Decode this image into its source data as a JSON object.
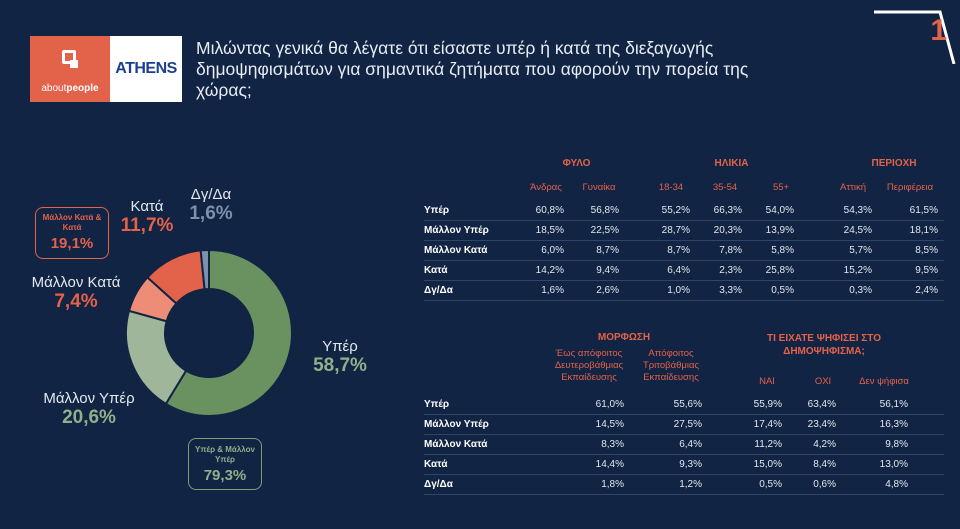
{
  "brand": {
    "about": "about",
    "people": "people",
    "athens": "ATHENS"
  },
  "title": "Μιλώντας γενικά θα λέγατε ότι είσαστε υπέρ ή κατά της διεξαγωγής δημοψηφισμάτων για σημαντικά ζητήματα που αφορούν την πορεία της χώρας;",
  "slide_number": "1",
  "colors": {
    "bg": "#112443",
    "accent": "#e3624a",
    "green_dark": "#6a9160",
    "green_light": "#9fb69b",
    "orange_light": "#ee8d77",
    "steel": "#7d90ad"
  },
  "chart_data": [
    {
      "type": "pie",
      "subtype": "donut",
      "title": "",
      "slices": [
        {
          "label": "Υπέρ",
          "value": 58.7,
          "display": "58,7%",
          "color": "#6a9160"
        },
        {
          "label": "Μάλλον Υπέρ",
          "value": 20.6,
          "display": "20,6%",
          "color": "#9fb69b"
        },
        {
          "label": "Μάλλον Κατά",
          "value": 7.4,
          "display": "7,4%",
          "color": "#ee8d77"
        },
        {
          "label": "Κατά",
          "value": 11.7,
          "display": "11,7%",
          "color": "#e3624a"
        },
        {
          "label": "Δγ/Δα",
          "value": 1.6,
          "display": "1,6%",
          "color": "#7d90ad"
        }
      ],
      "annotations": [
        {
          "text": "Μάλλον Κατά & Κατά",
          "value": "19,1%"
        },
        {
          "text": "Υπέρ & Μάλλον Υπέρ",
          "value": "79,3%"
        }
      ]
    },
    {
      "type": "table",
      "groups": [
        {
          "label": "ΦΥΛΟ",
          "columns": [
            "Άνδρας",
            "Γυναίκα"
          ]
        },
        {
          "label": "ΗΛΙΚΙΑ",
          "columns": [
            "18-34",
            "35-54",
            "55+"
          ]
        },
        {
          "label": "ΠΕΡΙΟΧΗ",
          "columns": [
            "Αττική",
            "Περιφέρεια"
          ]
        }
      ],
      "rows": [
        {
          "label": "Υπέρ",
          "values": [
            "60,8%",
            "56,8%",
            "55,2%",
            "66,3%",
            "54,0%",
            "54,3%",
            "61,5%"
          ]
        },
        {
          "label": "Μάλλον Υπέρ",
          "values": [
            "18,5%",
            "22,5%",
            "28,7%",
            "20,3%",
            "13,9%",
            "24,5%",
            "18,1%"
          ]
        },
        {
          "label": "Μάλλον Κατά",
          "values": [
            "6,0%",
            "8,7%",
            "8,7%",
            "7,8%",
            "5,8%",
            "5,7%",
            "8,5%"
          ]
        },
        {
          "label": "Κατά",
          "values": [
            "14,2%",
            "9,4%",
            "6,4%",
            "2,3%",
            "25,8%",
            "15,2%",
            "9,5%"
          ]
        },
        {
          "label": "Δγ/Δα",
          "values": [
            "1,6%",
            "2,6%",
            "1,0%",
            "3,3%",
            "0,5%",
            "0,3%",
            "2,4%"
          ]
        }
      ]
    },
    {
      "type": "table",
      "groups": [
        {
          "label": "ΜΟΡΦΩΣΗ",
          "columns": [
            "Έως απόφοιτος Δευτεροβάθμιας Εκπαίδευσης",
            "Απόφοιτος Τριτοβάθμιας Εκπαίδευσης"
          ]
        },
        {
          "label": "ΤΙ ΕΙΧΑΤΕ ΨΗΦΙΣΕΙ ΣΤΟ ΔΗΜΟΨΗΦΙΣΜΑ;",
          "columns": [
            "ΝΑΙ",
            "ΟΧΙ",
            "Δεν ψήφισα"
          ]
        }
      ],
      "rows": [
        {
          "label": "Υπέρ",
          "values": [
            "61,0%",
            "55,6%",
            "55,9%",
            "63,4%",
            "56,1%"
          ]
        },
        {
          "label": "Μάλλον Υπέρ",
          "values": [
            "14,5%",
            "27,5%",
            "17,4%",
            "23,4%",
            "16,3%"
          ]
        },
        {
          "label": "Μάλλον Κατά",
          "values": [
            "8,3%",
            "6,4%",
            "11,2%",
            "4,2%",
            "9,8%"
          ]
        },
        {
          "label": "Κατά",
          "values": [
            "14,4%",
            "9,3%",
            "15,0%",
            "8,4%",
            "13,0%"
          ]
        },
        {
          "label": "Δγ/Δα",
          "values": [
            "1,8%",
            "1,2%",
            "0,5%",
            "0,6%",
            "4,8%"
          ]
        }
      ]
    }
  ]
}
